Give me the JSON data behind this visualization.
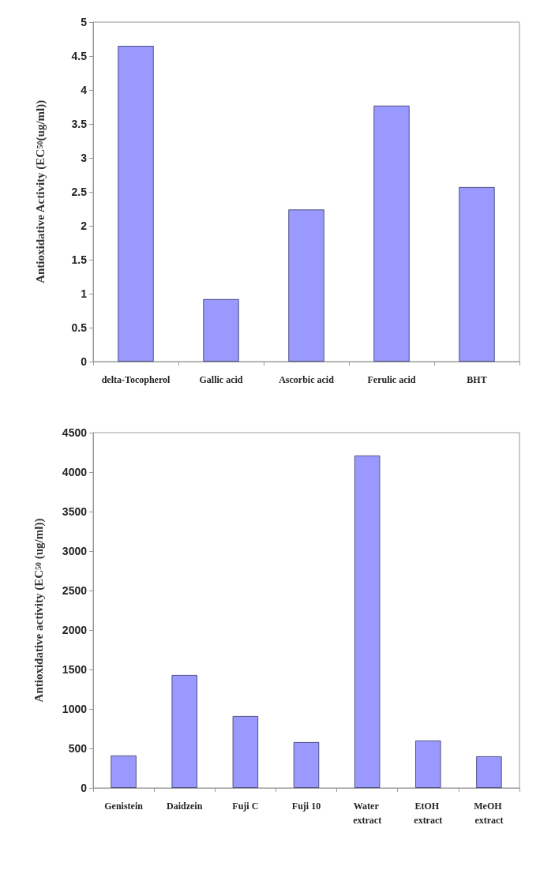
{
  "chart_data": [
    {
      "type": "bar",
      "ylabel": "Antioxidative Activity (EC$_{50}$(ug/ml))",
      "categories": [
        "delta-Tocopherol",
        "Gallic acid",
        "Ascorbic acid",
        "Ferulic acid",
        "BHT"
      ],
      "values": [
        4.65,
        0.92,
        2.24,
        3.77,
        2.57
      ],
      "color": "#9999ff",
      "ylim": [
        0,
        5
      ],
      "yticks": [
        0,
        0.5,
        1,
        1.5,
        2,
        2.5,
        3,
        3.5,
        4,
        4.5,
        5
      ],
      "grid": false
    },
    {
      "type": "bar",
      "ylabel": "Antioxidative activity (EC$_{50}$ (ug/ml))",
      "categories": [
        "Genistein",
        "Daidzein",
        "Fuji C",
        "Fuji 10",
        "Water extract",
        "EtOH extract",
        "MeOH extract"
      ],
      "values": [
        410,
        1430,
        910,
        580,
        4210,
        600,
        400
      ],
      "color": "#9999ff",
      "ylim": [
        0,
        4500
      ],
      "yticks": [
        0,
        500,
        1000,
        1500,
        2000,
        2500,
        3000,
        3500,
        4000,
        4500
      ],
      "grid": false
    }
  ]
}
